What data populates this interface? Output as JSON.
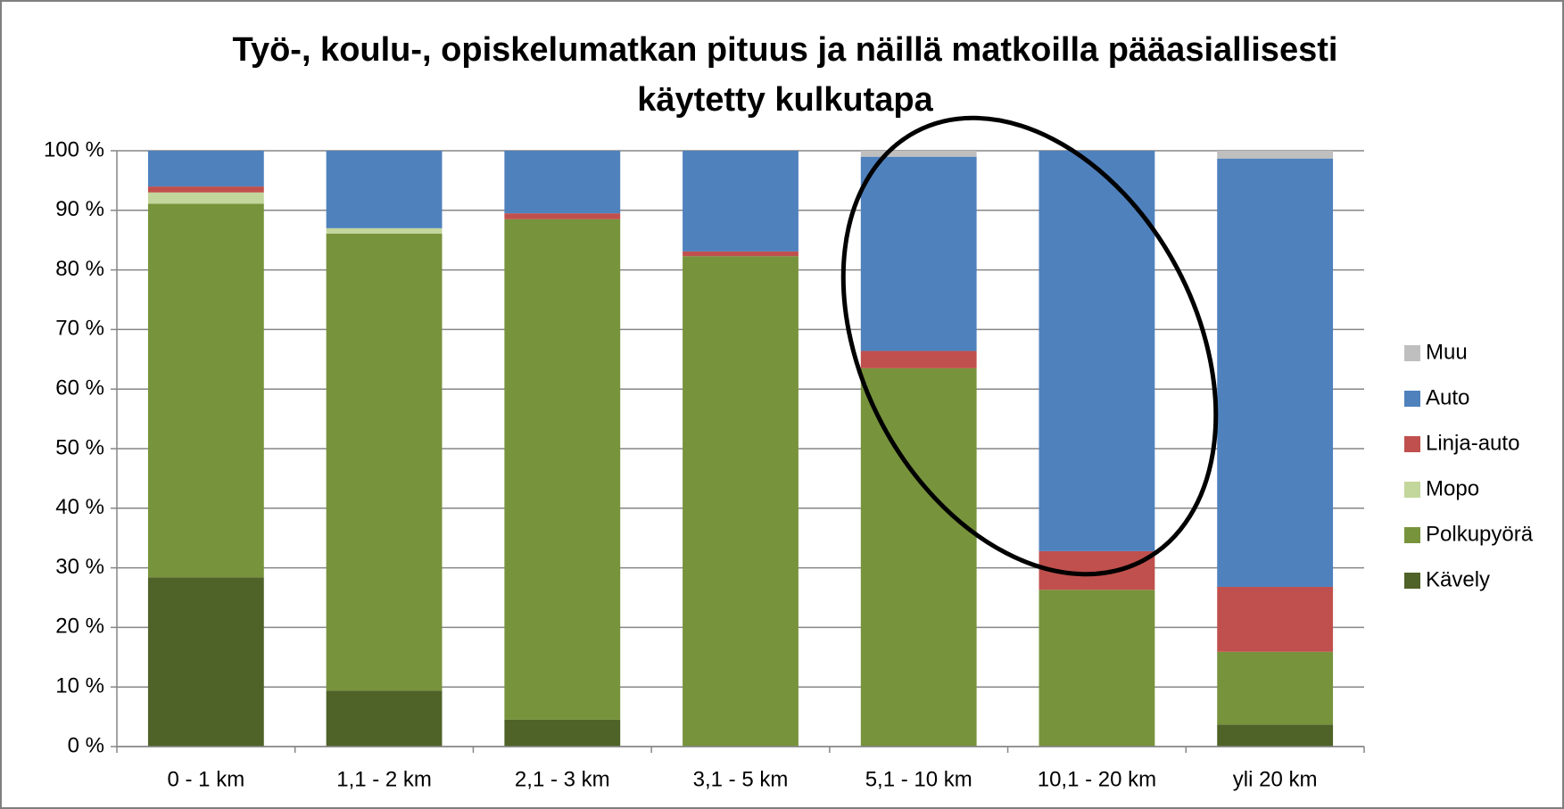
{
  "chart_data": {
    "type": "stacked_bar",
    "title": "Työ-, koulu-, opiskelumatkan pituus ja näillä matkoilla pääasiallisesti käytetty kulkutapa",
    "categories": [
      "0 - 1 km",
      "1,1 - 2 km",
      "2,1 - 3 km",
      "3,1 - 5 km",
      "5,1 - 10 km",
      "10,1 - 20 km",
      "yli 20 km"
    ],
    "series": [
      {
        "name": "Kävely",
        "color": "#4f6228",
        "values": [
          28.4,
          9.4,
          4.5,
          0,
          0,
          0,
          3.7
        ]
      },
      {
        "name": "Polkupyörä",
        "color": "#77933c",
        "values": [
          62.7,
          76.7,
          84.0,
          82.3,
          63.5,
          26.3,
          12.2
        ]
      },
      {
        "name": "Mopo",
        "color": "#c3d69b",
        "values": [
          1.9,
          0.9,
          0,
          0,
          0,
          0,
          0
        ]
      },
      {
        "name": "Linja-auto",
        "color": "#c0504d",
        "values": [
          1.0,
          0,
          1.0,
          0.8,
          2.9,
          6.5,
          10.9
        ]
      },
      {
        "name": "Auto",
        "color": "#4f81bd",
        "values": [
          6.0,
          13.0,
          10.5,
          16.9,
          32.6,
          67.2,
          71.9
        ]
      },
      {
        "name": "Muu",
        "color": "#bfbfbf",
        "values": [
          0,
          0,
          0,
          0,
          1.0,
          0,
          1.3
        ]
      }
    ],
    "ylim": [
      0,
      100
    ],
    "yticks": [
      {
        "value": 0,
        "label": "0 %"
      },
      {
        "value": 10,
        "label": "10 %"
      },
      {
        "value": 20,
        "label": "20 %"
      },
      {
        "value": 30,
        "label": "30 %"
      },
      {
        "value": 40,
        "label": "40 %"
      },
      {
        "value": 50,
        "label": "50 %"
      },
      {
        "value": 60,
        "label": "60 %"
      },
      {
        "value": 70,
        "label": "70 %"
      },
      {
        "value": 80,
        "label": "80 %"
      },
      {
        "value": 90,
        "label": "90 %"
      },
      {
        "value": 100,
        "label": "100 %"
      }
    ],
    "grid": true,
    "legend": "right"
  }
}
